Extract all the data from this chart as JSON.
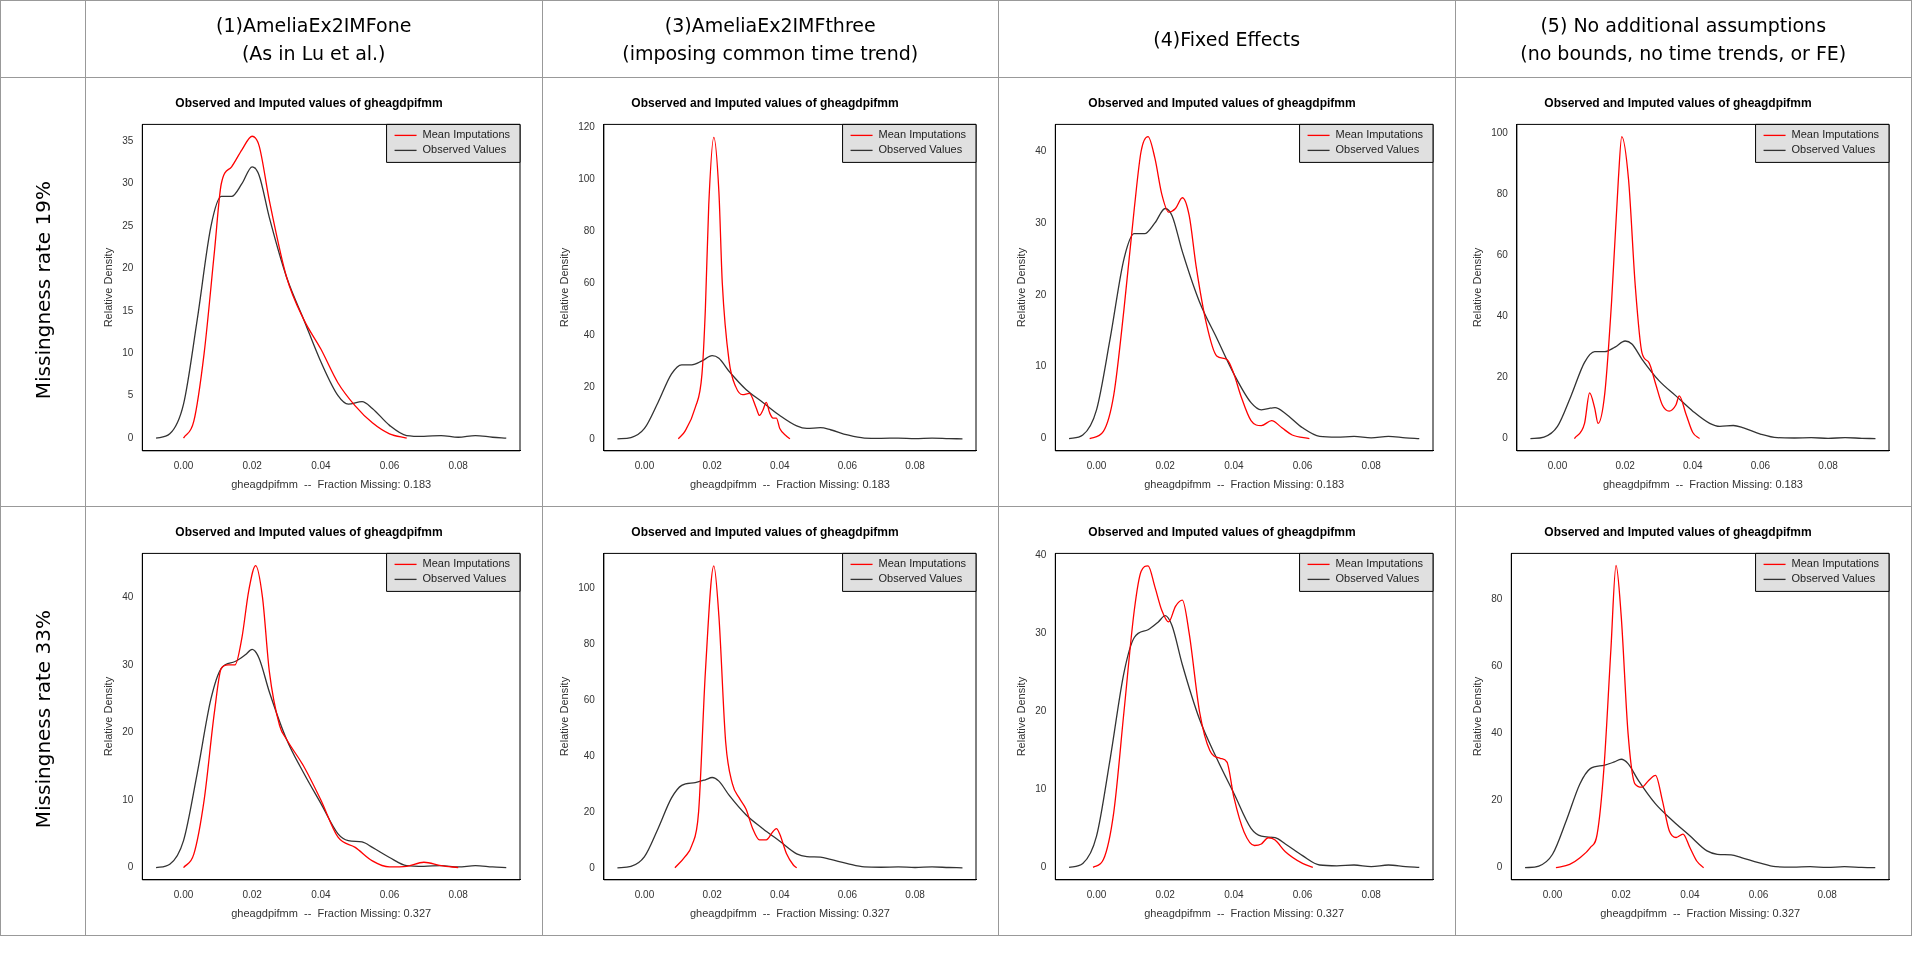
{
  "chart_data": [
    {
      "type": "line",
      "subtitle": "(1)AmeliaEx2IMFone\n(As in Lu et al.)",
      "annotations": [
        "Missingness rate 19%"
      ],
      "title": "Observed and Imputed values of gheagdpifmm",
      "xlabel": "gheagdpifmm  --  Fraction Missing: 0.183",
      "ylabel": "Relative Density",
      "xlim": [
        -0.012,
        0.098
      ],
      "ylim": [
        -1.5,
        37
      ],
      "xticks": [
        {
          "value": 0,
          "label": "0.00"
        },
        {
          "value": 0.02,
          "label": "0.02"
        },
        {
          "value": 0.04,
          "label": "0.04"
        },
        {
          "value": 0.06,
          "label": "0.06"
        },
        {
          "value": 0.08,
          "label": "0.08"
        }
      ],
      "yticks": [
        0,
        5,
        10,
        15,
        20,
        25,
        30,
        35
      ],
      "grid": false,
      "legend": "top right",
      "marker": "none",
      "line_style": "solid",
      "series": [
        {
          "name": "Mean Imputations",
          "color": "#ff0000",
          "x": [
            0,
            0.003,
            0.006,
            0.009,
            0.011,
            0.014,
            0.017,
            0.02,
            0.022,
            0.025,
            0.03,
            0.035,
            0.04,
            0.045,
            0.05,
            0.055,
            0.06,
            0.065
          ],
          "values": [
            0,
            2,
            10,
            22,
            30,
            32,
            34,
            35.6,
            34.5,
            28,
            19,
            14,
            10.5,
            6.5,
            3.8,
            1.8,
            0.5,
            0
          ]
        },
        {
          "name": "Observed Values",
          "color": "#333333",
          "x": [
            -0.008,
            -0.004,
            0,
            0.004,
            0.008,
            0.011,
            0.014,
            0.017,
            0.02,
            0.022,
            0.025,
            0.03,
            0.035,
            0.04,
            0.045,
            0.048,
            0.052,
            0.055,
            0.06,
            0.065,
            0.07,
            0.075,
            0.08,
            0.085,
            0.09,
            0.094
          ],
          "values": [
            0,
            0.5,
            4,
            14,
            25,
            28.5,
            28.5,
            30,
            32,
            31,
            26,
            19,
            14,
            9,
            5,
            4,
            4.3,
            3.5,
            1.5,
            0.3,
            0.2,
            0.3,
            0.1,
            0.3,
            0.1,
            0
          ]
        }
      ]
    },
    {
      "type": "line",
      "subtitle": "(3)AmeliaEx2IMFthree\n(imposing common time trend)",
      "title": "Observed and Imputed values of gheagdpifmm",
      "xlabel": "gheagdpifmm  --  Fraction Missing: 0.183",
      "ylabel": "Relative Density",
      "xlim": [
        -0.012,
        0.098
      ],
      "ylim": [
        -4.6,
        121
      ],
      "xticks": [
        {
          "value": 0,
          "label": "0.00"
        },
        {
          "value": 0.02,
          "label": "0.02"
        },
        {
          "value": 0.04,
          "label": "0.04"
        },
        {
          "value": 0.06,
          "label": "0.06"
        },
        {
          "value": 0.08,
          "label": "0.08"
        }
      ],
      "yticks": [
        0,
        20,
        40,
        60,
        80,
        100,
        120
      ],
      "grid": false,
      "legend": "top right",
      "marker": "none",
      "line_style": "solid",
      "series": [
        {
          "name": "Mean Imputations",
          "color": "#ff0000",
          "x": [
            0.01,
            0.012,
            0.015,
            0.017,
            0.018,
            0.019,
            0.0205,
            0.022,
            0.023,
            0.025,
            0.027,
            0.029,
            0.031,
            0.033,
            0.034,
            0.035,
            0.036,
            0.037,
            0.038,
            0.039,
            0.04,
            0.042,
            0.043
          ],
          "values": [
            0,
            3,
            12,
            25,
            50,
            90,
            116,
            95,
            60,
            30,
            20,
            17,
            17.5,
            12,
            9,
            11,
            14,
            10,
            8,
            8,
            4,
            1,
            0
          ]
        },
        {
          "name": "Observed Values",
          "color": "#333333",
          "x": [
            -0.008,
            -0.004,
            0,
            0.004,
            0.008,
            0.011,
            0.014,
            0.017,
            0.02,
            0.022,
            0.025,
            0.03,
            0.035,
            0.04,
            0.045,
            0.048,
            0.052,
            0.055,
            0.06,
            0.065,
            0.07,
            0.075,
            0.08,
            0.085,
            0.09,
            0.094
          ],
          "values": [
            0,
            0.5,
            4,
            14,
            25,
            28.5,
            28.5,
            30,
            32,
            31,
            26,
            19,
            14,
            9,
            5,
            4,
            4.3,
            3.5,
            1.5,
            0.3,
            0.2,
            0.3,
            0.1,
            0.3,
            0.1,
            0
          ]
        }
      ]
    },
    {
      "type": "line",
      "subtitle": "(4)Fixed Effects",
      "title": "Observed and Imputed values of gheagdpifmm",
      "xlabel": "gheagdpifmm  --  Fraction Missing: 0.183",
      "ylabel": "Relative Density",
      "xlim": [
        -0.012,
        0.098
      ],
      "ylim": [
        -1.7,
        43.7
      ],
      "xticks": [
        {
          "value": 0,
          "label": "0.00"
        },
        {
          "value": 0.02,
          "label": "0.02"
        },
        {
          "value": 0.04,
          "label": "0.04"
        },
        {
          "value": 0.06,
          "label": "0.06"
        },
        {
          "value": 0.08,
          "label": "0.08"
        }
      ],
      "yticks": [
        0,
        10,
        20,
        30,
        40
      ],
      "grid": false,
      "legend": "top right",
      "marker": "none",
      "line_style": "solid",
      "series": [
        {
          "name": "Mean Imputations",
          "color": "#ff0000",
          "x": [
            -0.002,
            0.002,
            0.005,
            0.008,
            0.011,
            0.013,
            0.015,
            0.017,
            0.019,
            0.021,
            0.023,
            0.025,
            0.027,
            0.029,
            0.032,
            0.035,
            0.038,
            0.04,
            0.042,
            0.045,
            0.048,
            0.051,
            0.054,
            0.057,
            0.062
          ],
          "values": [
            0,
            1,
            6,
            18,
            32,
            40,
            42,
            39,
            34,
            31.5,
            32,
            33.5,
            31,
            24,
            16,
            11.5,
            11,
            9,
            6,
            2.5,
            1.8,
            2.5,
            1.5,
            0.5,
            0
          ]
        },
        {
          "name": "Observed Values",
          "color": "#333333",
          "x": [
            -0.008,
            -0.004,
            0,
            0.004,
            0.008,
            0.011,
            0.014,
            0.017,
            0.02,
            0.022,
            0.025,
            0.03,
            0.035,
            0.04,
            0.045,
            0.048,
            0.052,
            0.055,
            0.06,
            0.065,
            0.07,
            0.075,
            0.08,
            0.085,
            0.09,
            0.094
          ],
          "values": [
            0,
            0.5,
            4,
            14,
            25,
            28.5,
            28.5,
            30,
            32,
            31,
            26,
            19,
            14,
            9,
            5,
            4,
            4.3,
            3.5,
            1.5,
            0.3,
            0.2,
            0.3,
            0.1,
            0.3,
            0.1,
            0
          ]
        }
      ]
    },
    {
      "type": "line",
      "subtitle": "(5) No additional assumptions\n(no bounds, no time trends, or FE)",
      "title": "Observed and Imputed values of gheagdpifmm",
      "xlabel": "gheagdpifmm  --  Fraction Missing: 0.183",
      "ylabel": "Relative Density",
      "xlim": [
        -0.012,
        0.098
      ],
      "ylim": [
        -4,
        103
      ],
      "xticks": [
        {
          "value": 0,
          "label": "0.00"
        },
        {
          "value": 0.02,
          "label": "0.02"
        },
        {
          "value": 0.04,
          "label": "0.04"
        },
        {
          "value": 0.06,
          "label": "0.06"
        },
        {
          "value": 0.08,
          "label": "0.08"
        }
      ],
      "yticks": [
        0,
        20,
        40,
        60,
        80,
        100
      ],
      "grid": false,
      "legend": "top right",
      "marker": "none",
      "line_style": "solid",
      "series": [
        {
          "name": "Mean Imputations",
          "color": "#ff0000",
          "x": [
            0.005,
            0.008,
            0.0095,
            0.011,
            0.012,
            0.014,
            0.016,
            0.018,
            0.019,
            0.021,
            0.023,
            0.025,
            0.027,
            0.029,
            0.031,
            0.033,
            0.035,
            0.036,
            0.038,
            0.04,
            0.042
          ],
          "values": [
            0,
            5,
            15,
            10,
            5,
            15,
            45,
            85,
            99,
            85,
            50,
            28,
            25,
            18,
            11,
            9,
            11,
            14,
            8,
            2,
            0
          ]
        },
        {
          "name": "Observed Values",
          "color": "#333333",
          "x": [
            -0.008,
            -0.004,
            0,
            0.004,
            0.008,
            0.011,
            0.014,
            0.017,
            0.02,
            0.022,
            0.025,
            0.03,
            0.035,
            0.04,
            0.045,
            0.048,
            0.052,
            0.055,
            0.06,
            0.065,
            0.07,
            0.075,
            0.08,
            0.085,
            0.09,
            0.094
          ],
          "values": [
            0,
            0.5,
            4,
            14,
            25,
            28.5,
            28.5,
            30,
            32,
            31,
            26,
            19,
            14,
            9,
            5,
            4,
            4.3,
            3.5,
            1.5,
            0.3,
            0.2,
            0.3,
            0.1,
            0.3,
            0.1,
            0
          ]
        }
      ]
    },
    {
      "type": "line",
      "annotations": [
        "Missingness rate 33%"
      ],
      "title": "Observed and Imputed values of gheagdpifmm",
      "xlabel": "gheagdpifmm  --  Fraction Missing: 0.327",
      "ylabel": "Relative Density",
      "xlim": [
        -0.012,
        0.098
      ],
      "ylim": [
        -1.8,
        46.5
      ],
      "xticks": [
        {
          "value": 0,
          "label": "0.00"
        },
        {
          "value": 0.02,
          "label": "0.02"
        },
        {
          "value": 0.04,
          "label": "0.04"
        },
        {
          "value": 0.06,
          "label": "0.06"
        },
        {
          "value": 0.08,
          "label": "0.08"
        }
      ],
      "yticks": [
        0,
        10,
        20,
        30,
        40
      ],
      "grid": false,
      "legend": "top right",
      "marker": "none",
      "line_style": "solid",
      "series": [
        {
          "name": "Mean Imputations",
          "color": "#ff0000",
          "x": [
            0,
            0.003,
            0.006,
            0.009,
            0.011,
            0.013,
            0.015,
            0.017,
            0.019,
            0.021,
            0.023,
            0.025,
            0.028,
            0.03,
            0.035,
            0.04,
            0.045,
            0.05,
            0.055,
            0.06,
            0.065,
            0.07,
            0.075,
            0.08
          ],
          "values": [
            0,
            2,
            10,
            23,
            29.5,
            30,
            30,
            34,
            41,
            44.7,
            40,
            29,
            21,
            19,
            15,
            10,
            4.5,
            3,
            1,
            0.1,
            0.2,
            0.8,
            0.3,
            0
          ]
        },
        {
          "name": "Observed Values",
          "color": "#333333",
          "x": [
            -0.008,
            -0.004,
            0,
            0.004,
            0.008,
            0.011,
            0.015,
            0.018,
            0.02,
            0.022,
            0.025,
            0.03,
            0.035,
            0.04,
            0.045,
            0.048,
            0.052,
            0.055,
            0.06,
            0.065,
            0.07,
            0.075,
            0.08,
            0.085,
            0.09,
            0.094
          ],
          "values": [
            0,
            0.5,
            4,
            14,
            25,
            29.5,
            30.5,
            31.5,
            32.3,
            31,
            26,
            19,
            14,
            9.5,
            5,
            4,
            3.8,
            3,
            1.5,
            0.3,
            0.2,
            0.3,
            0.1,
            0.3,
            0.1,
            0
          ]
        }
      ]
    },
    {
      "type": "line",
      "title": "Observed and Imputed values of gheagdpifmm",
      "xlabel": "gheagdpifmm  --  Fraction Missing: 0.327",
      "ylabel": "Relative Density",
      "xlim": [
        -0.012,
        0.098
      ],
      "ylim": [
        -4.3,
        112.5
      ],
      "xticks": [
        {
          "value": 0,
          "label": "0.00"
        },
        {
          "value": 0.02,
          "label": "0.02"
        },
        {
          "value": 0.04,
          "label": "0.04"
        },
        {
          "value": 0.06,
          "label": "0.06"
        },
        {
          "value": 0.08,
          "label": "0.08"
        }
      ],
      "yticks": [
        0,
        20,
        40,
        60,
        80,
        100
      ],
      "grid": false,
      "legend": "top right",
      "marker": "none",
      "line_style": "solid",
      "series": [
        {
          "name": "Mean Imputations",
          "color": "#ff0000",
          "x": [
            0.009,
            0.012,
            0.014,
            0.016,
            0.018,
            0.0205,
            0.022,
            0.024,
            0.026,
            0.028,
            0.03,
            0.032,
            0.034,
            0.036,
            0.038,
            0.039,
            0.04,
            0.042,
            0.044,
            0.045
          ],
          "values": [
            0,
            4,
            8,
            20,
            70,
            108,
            90,
            45,
            30,
            25,
            21,
            14,
            10,
            10,
            13,
            14,
            12,
            5,
            1,
            0
          ]
        },
        {
          "name": "Observed Values",
          "color": "#333333",
          "x": [
            -0.008,
            -0.004,
            0,
            0.004,
            0.008,
            0.011,
            0.015,
            0.018,
            0.02,
            0.022,
            0.025,
            0.03,
            0.035,
            0.04,
            0.045,
            0.048,
            0.052,
            0.055,
            0.06,
            0.065,
            0.07,
            0.075,
            0.08,
            0.085,
            0.09,
            0.094
          ],
          "values": [
            0,
            0.5,
            4,
            14,
            25,
            29.5,
            30.5,
            31.5,
            32.3,
            31,
            26,
            19,
            14,
            9.5,
            5,
            4,
            3.8,
            3,
            1.5,
            0.3,
            0.2,
            0.3,
            0.1,
            0.3,
            0.1,
            0
          ]
        }
      ]
    },
    {
      "type": "line",
      "title": "Observed and Imputed values of gheagdpifmm",
      "xlabel": "gheagdpifmm  --  Fraction Missing: 0.327",
      "ylabel": "Relative Density",
      "xlim": [
        -0.012,
        0.098
      ],
      "ylim": [
        -1.6,
        40.3
      ],
      "xticks": [
        {
          "value": 0,
          "label": "0.00"
        },
        {
          "value": 0.02,
          "label": "0.02"
        },
        {
          "value": 0.04,
          "label": "0.04"
        },
        {
          "value": 0.06,
          "label": "0.06"
        },
        {
          "value": 0.08,
          "label": "0.08"
        }
      ],
      "yticks": [
        0,
        10,
        20,
        30,
        40
      ],
      "grid": false,
      "legend": "top right",
      "marker": "none",
      "line_style": "solid",
      "series": [
        {
          "name": "Mean Imputations",
          "color": "#ff0000",
          "x": [
            -0.001,
            0.002,
            0.005,
            0.008,
            0.011,
            0.013,
            0.015,
            0.017,
            0.019,
            0.021,
            0.023,
            0.025,
            0.027,
            0.03,
            0.033,
            0.036,
            0.038,
            0.04,
            0.043,
            0.046,
            0.048,
            0.05,
            0.052,
            0.055,
            0.06,
            0.063
          ],
          "values": [
            0,
            1,
            7,
            20,
            33,
            38,
            38.7,
            36,
            33,
            31.5,
            33.5,
            34.3,
            30,
            20,
            15,
            14,
            13.5,
            9,
            4.5,
            2.8,
            3,
            3.8,
            3.5,
            2,
            0.5,
            0
          ]
        },
        {
          "name": "Observed Values",
          "color": "#333333",
          "x": [
            -0.008,
            -0.004,
            0,
            0.004,
            0.008,
            0.011,
            0.015,
            0.018,
            0.02,
            0.022,
            0.025,
            0.03,
            0.035,
            0.04,
            0.045,
            0.048,
            0.052,
            0.055,
            0.06,
            0.065,
            0.07,
            0.075,
            0.08,
            0.085,
            0.09,
            0.094
          ],
          "values": [
            0,
            0.5,
            4,
            14,
            25,
            29.5,
            30.5,
            31.5,
            32.3,
            31,
            26,
            19,
            14,
            9.5,
            5,
            4,
            3.8,
            3,
            1.5,
            0.3,
            0.2,
            0.3,
            0.1,
            0.3,
            0.1,
            0
          ]
        }
      ]
    },
    {
      "type": "line",
      "title": "Observed and Imputed values of gheagdpifmm",
      "xlabel": "gheagdpifmm  --  Fraction Missing: 0.327",
      "ylabel": "Relative Density",
      "xlim": [
        -0.012,
        0.098
      ],
      "ylim": [
        -3.6,
        93.6
      ],
      "xticks": [
        {
          "value": 0,
          "label": "0.00"
        },
        {
          "value": 0.02,
          "label": "0.02"
        },
        {
          "value": 0.04,
          "label": "0.04"
        },
        {
          "value": 0.06,
          "label": "0.06"
        },
        {
          "value": 0.08,
          "label": "0.08"
        }
      ],
      "yticks": [
        0,
        20,
        40,
        60,
        80
      ],
      "grid": false,
      "legend": "top right",
      "marker": "none",
      "line_style": "solid",
      "series": [
        {
          "name": "Mean Imputations",
          "color": "#ff0000",
          "x": [
            0.001,
            0.005,
            0.008,
            0.011,
            0.013,
            0.015,
            0.017,
            0.0185,
            0.02,
            0.022,
            0.024,
            0.026,
            0.028,
            0.03,
            0.032,
            0.034,
            0.036,
            0.038,
            0.04,
            0.042,
            0.044
          ],
          "values": [
            0,
            1,
            3,
            6,
            10,
            30,
            65,
            90,
            75,
            40,
            25,
            24,
            26,
            27.5,
            20,
            11,
            9,
            10,
            6,
            2,
            0
          ]
        },
        {
          "name": "Observed Values",
          "color": "#333333",
          "x": [
            -0.008,
            -0.004,
            0,
            0.004,
            0.008,
            0.011,
            0.015,
            0.018,
            0.02,
            0.022,
            0.025,
            0.03,
            0.035,
            0.04,
            0.045,
            0.048,
            0.052,
            0.055,
            0.06,
            0.065,
            0.07,
            0.075,
            0.08,
            0.085,
            0.09,
            0.094
          ],
          "values": [
            0,
            0.5,
            4,
            14,
            25,
            29.5,
            30.5,
            31.5,
            32.3,
            31,
            26,
            19,
            14,
            9.5,
            5,
            4,
            3.8,
            3,
            1.5,
            0.3,
            0.2,
            0.3,
            0.1,
            0.3,
            0.1,
            0
          ]
        }
      ]
    }
  ]
}
